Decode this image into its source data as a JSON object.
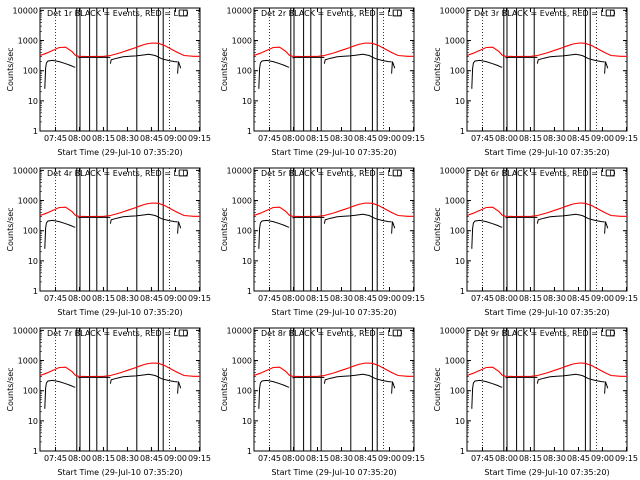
{
  "window": {
    "width": 640,
    "height": 480
  },
  "panel_titles": [
    "Det 1r BLACK = Events, RED = LLD",
    "Det 2r BLACK = Events, RED = LLD",
    "Det 3r BLACK = Events, RED = LLD",
    "Det 4r BLACK = Events, RED = LLD",
    "Det 5r BLACK = Events, RED = LLD",
    "Det 6r BLACK = Events, RED = LLD",
    "Det 7r BLACK = Events, RED = LLD",
    "Det 8r BLACK = Events, RED = LLD",
    "Det 9r BLACK = Events, RED = LLD"
  ],
  "xlabel": "Start Time (29-Jul-10 07:35:20)",
  "ylabel": "Counts/sec",
  "xtick_labels": [
    "07:45",
    "08:00",
    "08:15",
    "08:30",
    "08:45",
    "09:00",
    "09:15"
  ],
  "ytick_labels": [
    "1",
    "10",
    "100",
    "1000",
    "10000"
  ],
  "colors": {
    "events": "#000000",
    "lld": "#ff0000",
    "axes": "#000000",
    "background": "#ffffff"
  },
  "chart_data": {
    "type": "line",
    "grid": "3x3",
    "x_unit": "minutes since 07:35:20",
    "xlim": [
      0,
      100
    ],
    "ylim": [
      1,
      12000
    ],
    "yscale": "log",
    "xticks_min": [
      9.67,
      24.67,
      39.67,
      54.67,
      69.67,
      84.67,
      99.67
    ],
    "dotted_vertical_lines_min": [
      9.7,
      81
    ],
    "solid_vertical_lines_min": [
      23.0,
      25.0,
      31.0,
      35.5,
      42.0,
      60.5,
      74.0,
      77.0
    ],
    "lld_series": {
      "name": "LLD",
      "x": [
        0,
        4,
        8,
        12,
        16,
        20,
        22,
        24,
        30,
        35,
        40,
        44,
        50,
        55,
        60,
        62,
        66,
        70,
        74,
        78,
        82,
        86,
        90,
        96,
        100
      ],
      "y": [
        320,
        380,
        470,
        590,
        600,
        430,
        330,
        300,
        295,
        298,
        300,
        320,
        390,
        480,
        590,
        650,
        760,
        830,
        810,
        680,
        520,
        400,
        320,
        300,
        300
      ]
    },
    "events_series": {
      "name": "Events",
      "segments": [
        {
          "x": [
            3,
            3.5,
            4,
            5,
            8,
            12,
            16,
            19,
            21,
            22
          ],
          "y": [
            25,
            120,
            180,
            210,
            220,
            200,
            170,
            150,
            135,
            130
          ]
        },
        {
          "x": [
            24,
            26,
            30,
            35,
            40,
            44
          ],
          "y": [
            270,
            275,
            280,
            275,
            280,
            275
          ]
        },
        {
          "x": [
            44,
            44.5,
            48,
            52,
            56,
            60,
            64,
            68,
            72,
            76,
            80,
            84,
            86
          ],
          "y": [
            170,
            230,
            260,
            290,
            300,
            310,
            330,
            350,
            320,
            250,
            220,
            200,
            195
          ]
        },
        {
          "x": [
            86,
            86.5,
            88
          ],
          "y": [
            80,
            200,
            120
          ]
        }
      ]
    }
  }
}
